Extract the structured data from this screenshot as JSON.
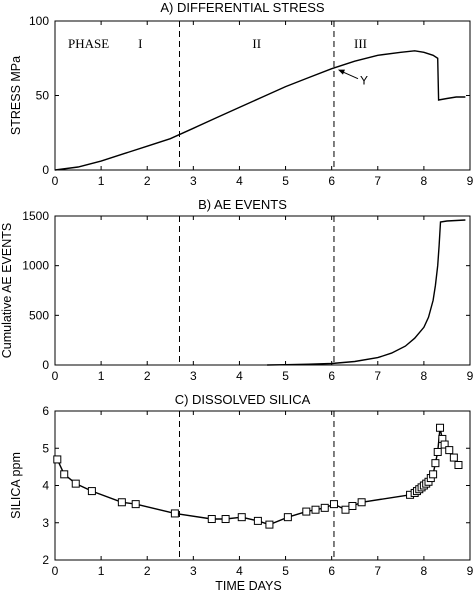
{
  "chart_data": [
    {
      "type": "line",
      "title": "A) DIFFERENTIAL STRESS",
      "xlabel": "",
      "ylabel": "STRESS MPa",
      "xlim": [
        0,
        9
      ],
      "ylim": [
        0,
        100
      ],
      "xticks": [
        "0",
        "1",
        "2",
        "3",
        "4",
        "5",
        "6",
        "7",
        "8",
        "9"
      ],
      "yticks": [
        "0",
        "50",
        "100"
      ],
      "phase_boundaries": [
        2.7,
        6.05
      ],
      "annotations": {
        "phase_label": "PHASE",
        "phases": [
          "I",
          "II",
          "III"
        ],
        "marker": "Y"
      },
      "series": [
        {
          "x": [
            0,
            0.5,
            1.0,
            1.5,
            2.0,
            2.5,
            3.0,
            3.5,
            4.0,
            4.5,
            5.0,
            5.5,
            6.0,
            6.5,
            7.0,
            7.5,
            7.8,
            8.0,
            8.2,
            8.3,
            8.32,
            8.5,
            8.7,
            8.9
          ],
          "y": [
            0,
            2,
            6,
            11,
            16,
            21,
            28,
            35,
            42,
            49,
            56,
            62,
            68,
            73,
            77,
            79,
            80,
            79,
            77,
            75,
            47,
            48,
            49,
            49
          ]
        }
      ]
    },
    {
      "type": "line",
      "title": "B) AE EVENTS",
      "xlabel": "",
      "ylabel": "Cumulative AE EVENTS",
      "xlim": [
        0,
        9
      ],
      "ylim": [
        0,
        1500
      ],
      "xticks": [
        "0",
        "1",
        "2",
        "3",
        "4",
        "5",
        "6",
        "7",
        "8",
        "9"
      ],
      "yticks": [
        "0",
        "500",
        "1000",
        "1500"
      ],
      "phase_boundaries": [
        2.7,
        6.05
      ],
      "series": [
        {
          "x": [
            4.6,
            5.0,
            5.5,
            6.0,
            6.5,
            7.0,
            7.3,
            7.6,
            7.8,
            8.0,
            8.1,
            8.2,
            8.25,
            8.3,
            8.33,
            8.36,
            8.5,
            8.9
          ],
          "y": [
            0,
            3,
            8,
            15,
            35,
            75,
            120,
            190,
            270,
            380,
            480,
            650,
            800,
            1000,
            1200,
            1440,
            1450,
            1460
          ]
        }
      ]
    },
    {
      "type": "line",
      "title": "C) DISSOLVED SILICA",
      "xlabel": "TIME DAYS",
      "ylabel": "SILICA ppm",
      "xlim": [
        0,
        9
      ],
      "ylim": [
        2,
        6
      ],
      "xticks": [
        "0",
        "1",
        "2",
        "3",
        "4",
        "5",
        "6",
        "7",
        "8",
        "9"
      ],
      "yticks": [
        "2",
        "3",
        "4",
        "5",
        "6"
      ],
      "phase_boundaries": [
        2.7,
        6.05
      ],
      "series": [
        {
          "marker": "square",
          "x": [
            0.05,
            0.2,
            0.45,
            0.8,
            1.45,
            1.75,
            2.6,
            3.4,
            3.7,
            4.05,
            4.4,
            4.65,
            5.05,
            5.45,
            5.65,
            5.85,
            6.05,
            6.3,
            6.45,
            6.65,
            7.7,
            7.8,
            7.85,
            7.9,
            7.95,
            8.0,
            8.05,
            8.1,
            8.15,
            8.2,
            8.25,
            8.3,
            8.35,
            8.4,
            8.45,
            8.55,
            8.65,
            8.75
          ],
          "y": [
            4.7,
            4.3,
            4.05,
            3.85,
            3.55,
            3.5,
            3.25,
            3.1,
            3.1,
            3.15,
            3.05,
            2.95,
            3.15,
            3.3,
            3.35,
            3.4,
            3.5,
            3.35,
            3.45,
            3.55,
            3.75,
            3.8,
            3.85,
            3.9,
            3.95,
            4.0,
            4.05,
            4.1,
            4.2,
            4.3,
            4.6,
            4.9,
            5.55,
            5.25,
            5.1,
            4.95,
            4.75,
            4.55
          ]
        }
      ]
    }
  ]
}
